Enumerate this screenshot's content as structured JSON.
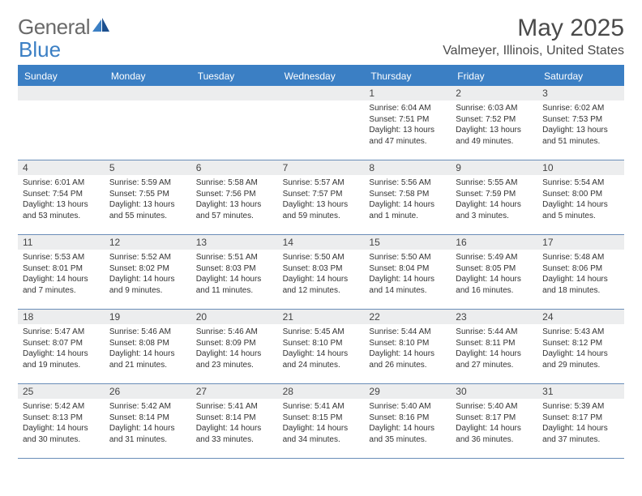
{
  "logo": {
    "word1": "General",
    "word2": "Blue"
  },
  "title": "May 2025",
  "location": "Valmeyer, Illinois, United States",
  "colors": {
    "header_bg": "#3b7fc4",
    "header_text": "#ffffff",
    "daynum_bg": "#ecedee",
    "border": "#6a8db8",
    "body_text": "#333333",
    "page_bg": "#ffffff",
    "logo_gray": "#6a6a6a",
    "logo_blue": "#3b7fc4"
  },
  "layout": {
    "cols": 7,
    "font_family": "Arial",
    "daynum_fontsize": 12,
    "info_fontsize": 10,
    "header_fontsize": 12,
    "title_fontsize": 30,
    "location_fontsize": 16
  },
  "day_names": [
    "Sunday",
    "Monday",
    "Tuesday",
    "Wednesday",
    "Thursday",
    "Friday",
    "Saturday"
  ],
  "leading_empty": 4,
  "days": [
    {
      "n": "1",
      "sunrise": "Sunrise: 6:04 AM",
      "sunset": "Sunset: 7:51 PM",
      "d1": "Daylight: 13 hours",
      "d2": "and 47 minutes."
    },
    {
      "n": "2",
      "sunrise": "Sunrise: 6:03 AM",
      "sunset": "Sunset: 7:52 PM",
      "d1": "Daylight: 13 hours",
      "d2": "and 49 minutes."
    },
    {
      "n": "3",
      "sunrise": "Sunrise: 6:02 AM",
      "sunset": "Sunset: 7:53 PM",
      "d1": "Daylight: 13 hours",
      "d2": "and 51 minutes."
    },
    {
      "n": "4",
      "sunrise": "Sunrise: 6:01 AM",
      "sunset": "Sunset: 7:54 PM",
      "d1": "Daylight: 13 hours",
      "d2": "and 53 minutes."
    },
    {
      "n": "5",
      "sunrise": "Sunrise: 5:59 AM",
      "sunset": "Sunset: 7:55 PM",
      "d1": "Daylight: 13 hours",
      "d2": "and 55 minutes."
    },
    {
      "n": "6",
      "sunrise": "Sunrise: 5:58 AM",
      "sunset": "Sunset: 7:56 PM",
      "d1": "Daylight: 13 hours",
      "d2": "and 57 minutes."
    },
    {
      "n": "7",
      "sunrise": "Sunrise: 5:57 AM",
      "sunset": "Sunset: 7:57 PM",
      "d1": "Daylight: 13 hours",
      "d2": "and 59 minutes."
    },
    {
      "n": "8",
      "sunrise": "Sunrise: 5:56 AM",
      "sunset": "Sunset: 7:58 PM",
      "d1": "Daylight: 14 hours",
      "d2": "and 1 minute."
    },
    {
      "n": "9",
      "sunrise": "Sunrise: 5:55 AM",
      "sunset": "Sunset: 7:59 PM",
      "d1": "Daylight: 14 hours",
      "d2": "and 3 minutes."
    },
    {
      "n": "10",
      "sunrise": "Sunrise: 5:54 AM",
      "sunset": "Sunset: 8:00 PM",
      "d1": "Daylight: 14 hours",
      "d2": "and 5 minutes."
    },
    {
      "n": "11",
      "sunrise": "Sunrise: 5:53 AM",
      "sunset": "Sunset: 8:01 PM",
      "d1": "Daylight: 14 hours",
      "d2": "and 7 minutes."
    },
    {
      "n": "12",
      "sunrise": "Sunrise: 5:52 AM",
      "sunset": "Sunset: 8:02 PM",
      "d1": "Daylight: 14 hours",
      "d2": "and 9 minutes."
    },
    {
      "n": "13",
      "sunrise": "Sunrise: 5:51 AM",
      "sunset": "Sunset: 8:03 PM",
      "d1": "Daylight: 14 hours",
      "d2": "and 11 minutes."
    },
    {
      "n": "14",
      "sunrise": "Sunrise: 5:50 AM",
      "sunset": "Sunset: 8:03 PM",
      "d1": "Daylight: 14 hours",
      "d2": "and 12 minutes."
    },
    {
      "n": "15",
      "sunrise": "Sunrise: 5:50 AM",
      "sunset": "Sunset: 8:04 PM",
      "d1": "Daylight: 14 hours",
      "d2": "and 14 minutes."
    },
    {
      "n": "16",
      "sunrise": "Sunrise: 5:49 AM",
      "sunset": "Sunset: 8:05 PM",
      "d1": "Daylight: 14 hours",
      "d2": "and 16 minutes."
    },
    {
      "n": "17",
      "sunrise": "Sunrise: 5:48 AM",
      "sunset": "Sunset: 8:06 PM",
      "d1": "Daylight: 14 hours",
      "d2": "and 18 minutes."
    },
    {
      "n": "18",
      "sunrise": "Sunrise: 5:47 AM",
      "sunset": "Sunset: 8:07 PM",
      "d1": "Daylight: 14 hours",
      "d2": "and 19 minutes."
    },
    {
      "n": "19",
      "sunrise": "Sunrise: 5:46 AM",
      "sunset": "Sunset: 8:08 PM",
      "d1": "Daylight: 14 hours",
      "d2": "and 21 minutes."
    },
    {
      "n": "20",
      "sunrise": "Sunrise: 5:46 AM",
      "sunset": "Sunset: 8:09 PM",
      "d1": "Daylight: 14 hours",
      "d2": "and 23 minutes."
    },
    {
      "n": "21",
      "sunrise": "Sunrise: 5:45 AM",
      "sunset": "Sunset: 8:10 PM",
      "d1": "Daylight: 14 hours",
      "d2": "and 24 minutes."
    },
    {
      "n": "22",
      "sunrise": "Sunrise: 5:44 AM",
      "sunset": "Sunset: 8:10 PM",
      "d1": "Daylight: 14 hours",
      "d2": "and 26 minutes."
    },
    {
      "n": "23",
      "sunrise": "Sunrise: 5:44 AM",
      "sunset": "Sunset: 8:11 PM",
      "d1": "Daylight: 14 hours",
      "d2": "and 27 minutes."
    },
    {
      "n": "24",
      "sunrise": "Sunrise: 5:43 AM",
      "sunset": "Sunset: 8:12 PM",
      "d1": "Daylight: 14 hours",
      "d2": "and 29 minutes."
    },
    {
      "n": "25",
      "sunrise": "Sunrise: 5:42 AM",
      "sunset": "Sunset: 8:13 PM",
      "d1": "Daylight: 14 hours",
      "d2": "and 30 minutes."
    },
    {
      "n": "26",
      "sunrise": "Sunrise: 5:42 AM",
      "sunset": "Sunset: 8:14 PM",
      "d1": "Daylight: 14 hours",
      "d2": "and 31 minutes."
    },
    {
      "n": "27",
      "sunrise": "Sunrise: 5:41 AM",
      "sunset": "Sunset: 8:14 PM",
      "d1": "Daylight: 14 hours",
      "d2": "and 33 minutes."
    },
    {
      "n": "28",
      "sunrise": "Sunrise: 5:41 AM",
      "sunset": "Sunset: 8:15 PM",
      "d1": "Daylight: 14 hours",
      "d2": "and 34 minutes."
    },
    {
      "n": "29",
      "sunrise": "Sunrise: 5:40 AM",
      "sunset": "Sunset: 8:16 PM",
      "d1": "Daylight: 14 hours",
      "d2": "and 35 minutes."
    },
    {
      "n": "30",
      "sunrise": "Sunrise: 5:40 AM",
      "sunset": "Sunset: 8:17 PM",
      "d1": "Daylight: 14 hours",
      "d2": "and 36 minutes."
    },
    {
      "n": "31",
      "sunrise": "Sunrise: 5:39 AM",
      "sunset": "Sunset: 8:17 PM",
      "d1": "Daylight: 14 hours",
      "d2": "and 37 minutes."
    }
  ]
}
